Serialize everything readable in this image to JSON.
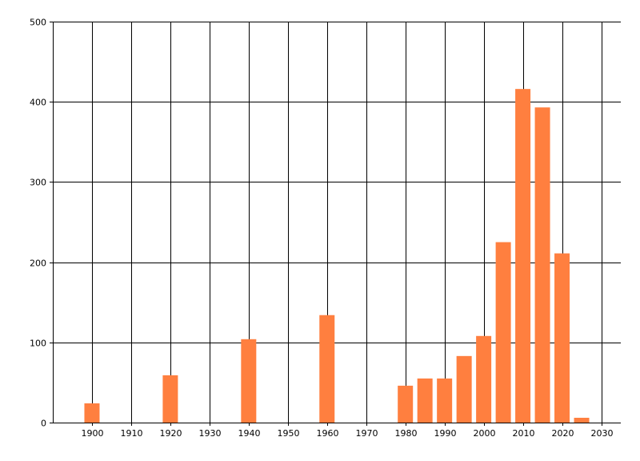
{
  "chart_data": {
    "type": "bar",
    "title": "",
    "xlabel": "",
    "ylabel": "",
    "x": [
      1900,
      1920,
      1940,
      1960,
      1980,
      1985,
      1990,
      1995,
      2000,
      2005,
      2010,
      2015,
      2020,
      2025
    ],
    "values": [
      24,
      59,
      104,
      134,
      46,
      55,
      55,
      83,
      108,
      225,
      416,
      393,
      211,
      6
    ],
    "xlim": [
      1890,
      2035
    ],
    "ylim": [
      0,
      500
    ],
    "xticks": [
      1900,
      1910,
      1920,
      1930,
      1940,
      1950,
      1960,
      1970,
      1980,
      1990,
      2000,
      2010,
      2020,
      2030
    ],
    "yticks": [
      0,
      100,
      200,
      300,
      400,
      500
    ],
    "grid": true,
    "bar_color": "#ff7f3f",
    "grid_color": "#000000"
  }
}
